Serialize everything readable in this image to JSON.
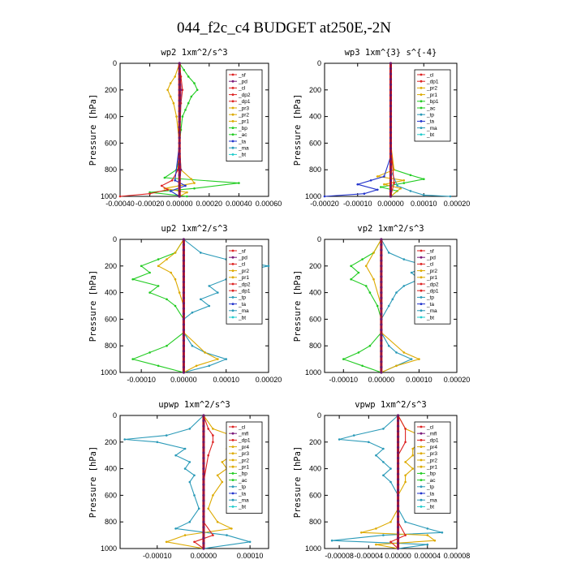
{
  "figure_title": "044_f2c_c4  BUDGET at250E,-2N",
  "chart_data": [
    {
      "id": "wp2",
      "type": "line",
      "title": "wp2   1xm^2/s^3",
      "ylabel": "Pressure [hPa]",
      "ylim": [
        1000,
        0
      ],
      "y_ticks": [
        0,
        200,
        400,
        600,
        800,
        1000
      ],
      "xlim": [
        -0.0004,
        0.0006
      ],
      "x_ticks": [
        -0.0004,
        -0.0002,
        0.0,
        0.0002,
        0.0004,
        0.0006
      ],
      "x_tick_labels": [
        "-0.00040",
        "-0.00020",
        "0.00000",
        "0.00020",
        "0.00040",
        "0.00060"
      ],
      "legend": [
        "_sf",
        "_pd",
        "_cl",
        "_dp2",
        "_dp1",
        "_pr3",
        "_pr2",
        "_pr1",
        "_bp",
        "_ac",
        "_ta",
        "_ma",
        "_bt"
      ],
      "series": [
        {
          "name": "_pr1",
          "color": "#22cc22",
          "y": [
            0,
            50,
            100,
            150,
            200,
            250,
            300,
            350,
            400,
            500,
            600,
            700,
            800,
            860,
            900,
            940,
            970,
            1000
          ],
          "x": [
            0,
            3e-05,
            6e-05,
            0.0001,
            0.00012,
            8e-05,
            6e-05,
            4e-05,
            2e-05,
            1e-05,
            0.0,
            0.0,
            -2e-05,
            -0.0001,
            0.0004,
            0.0001,
            -0.0002,
            5e-05
          ]
        },
        {
          "name": "_bp",
          "color": "#ddaa00",
          "y": [
            0,
            100,
            150,
            200,
            250,
            300,
            400,
            600,
            800,
            870,
            900,
            940,
            970,
            1000
          ],
          "x": [
            0,
            -3e-05,
            -6e-05,
            -8e-05,
            -6e-05,
            -4e-05,
            -2e-05,
            0.0,
            1e-05,
            8e-05,
            0.0001,
            -0.0001,
            5e-05,
            0.0
          ]
        },
        {
          "name": "_dp2",
          "color": "#dd2222",
          "y": [
            0,
            100,
            200,
            300,
            600,
            800,
            880,
            920,
            950,
            980,
            1000
          ],
          "x": [
            0,
            1e-05,
            2e-05,
            1e-05,
            0.0,
            -1e-05,
            -5e-05,
            -0.00012,
            -8e-05,
            -0.0002,
            -0.0004
          ]
        },
        {
          "name": "_ta",
          "color": "#2233cc",
          "y": [
            0,
            200,
            600,
            880,
            920,
            960,
            1000
          ],
          "x": [
            0,
            1e-05,
            0.0,
            -3e-05,
            4e-05,
            -6e-05,
            0.0
          ]
        },
        {
          "name": "_bt",
          "color": "#7a1a7a",
          "y": [
            0,
            200,
            400,
            600,
            800,
            900,
            1000
          ],
          "x": [
            0,
            1e-05,
            0.0,
            0.0,
            1e-05,
            0.0,
            0.0
          ]
        }
      ]
    },
    {
      "id": "wp3",
      "type": "line",
      "title": "wp3   1xm^{3} s^{-4}",
      "ylabel": "Pressure [hPa]",
      "ylim": [
        1000,
        0
      ],
      "y_ticks": [
        0,
        200,
        400,
        600,
        800,
        1000
      ],
      "xlim": [
        -0.0002,
        0.0002
      ],
      "x_ticks": [
        -0.0002,
        -0.0001,
        0.0,
        0.0001,
        0.0002
      ],
      "x_tick_labels": [
        "-0.00020",
        "-0.00010",
        "0.00000",
        "0.00010",
        "0.00020"
      ],
      "legend": [
        "_cl",
        "_dp1",
        "_pr2",
        "_pr1",
        "_bp1",
        "_ac",
        "_tp",
        "_ta",
        "_ma",
        "_bt"
      ],
      "series": [
        {
          "name": "_ac",
          "color": "#22cc22",
          "y": [
            0,
            400,
            700,
            800,
            840,
            870,
            900,
            930,
            960,
            1000
          ],
          "x": [
            0,
            0.0,
            0.0,
            1e-05,
            6e-05,
            0.0001,
            4e-05,
            -3e-05,
            2e-05,
            0.0
          ]
        },
        {
          "name": "_pr1",
          "color": "#ddaa00",
          "y": [
            0,
            600,
            800,
            850,
            880,
            910,
            940,
            1000
          ],
          "x": [
            0,
            0.0,
            1e-05,
            -4e-05,
            4e-05,
            -2e-05,
            3e-05,
            0.0
          ]
        },
        {
          "name": "_ta",
          "color": "#2233cc",
          "y": [
            0,
            700,
            850,
            880,
            910,
            950,
            980,
            1000
          ],
          "x": [
            0,
            0.0,
            -2e-05,
            -6e-05,
            -0.0001,
            -4e-05,
            -8e-05,
            -0.0002
          ]
        },
        {
          "name": "_ma",
          "color": "#2a9ab8",
          "y": [
            0,
            800,
            920,
            960,
            990,
            1000
          ],
          "x": [
            0,
            0.0,
            2e-05,
            6e-05,
            0.0001,
            0.00018
          ]
        },
        {
          "name": "_cl",
          "color": "#dd2222",
          "y": [
            0,
            200,
            600,
            900,
            1000
          ],
          "x": [
            0,
            0.0,
            0.0,
            1e-05,
            0.0
          ]
        }
      ]
    },
    {
      "id": "up2",
      "type": "line",
      "title": "up2   1xm^2/s^3",
      "ylabel": "Pressure [hPa]",
      "ylim": [
        1000,
        0
      ],
      "y_ticks": [
        0,
        200,
        400,
        600,
        800,
        1000
      ],
      "xlim": [
        -0.00015,
        0.0002
      ],
      "x_ticks": [
        -0.0001,
        0.0,
        0.0001,
        0.0002
      ],
      "x_tick_labels": [
        "-0.00010",
        "0.00000",
        "0.00010",
        "0.00020"
      ],
      "legend": [
        "_sf",
        "_pd",
        "_cl",
        "_pr2",
        "_pr1",
        "_dp2",
        "_dp1",
        "_tp",
        "_ta",
        "_ma",
        "_bt"
      ],
      "series": [
        {
          "name": "_tp",
          "color": "#2a9ab8",
          "y": [
            0,
            100,
            150,
            200,
            250,
            300,
            350,
            400,
            450,
            500,
            550,
            600,
            700,
            800,
            850,
            900,
            950,
            1000
          ],
          "x": [
            0,
            4e-05,
            0.0001,
            0.0002,
            0.00012,
            0.0001,
            6e-05,
            8e-05,
            4e-05,
            6e-05,
            2e-05,
            0.0,
            0.0,
            2e-05,
            5e-05,
            0.0001,
            6e-05,
            0.0
          ]
        },
        {
          "name": "_dp2",
          "color": "#22cc22",
          "y": [
            0,
            100,
            150,
            200,
            250,
            300,
            350,
            400,
            450,
            500,
            600,
            700,
            800,
            850,
            900,
            950,
            1000
          ],
          "x": [
            0,
            -2e-05,
            -6e-05,
            -0.0001,
            -8e-05,
            -0.00012,
            -6e-05,
            -8e-05,
            -4e-05,
            -2e-05,
            0.0,
            0.0,
            -4e-05,
            -8e-05,
            -0.00012,
            -6e-05,
            0.0
          ]
        },
        {
          "name": "_pr2",
          "color": "#ddaa00",
          "y": [
            0,
            100,
            150,
            200,
            250,
            300,
            400,
            500,
            700,
            850,
            900,
            950,
            1000
          ],
          "x": [
            0,
            -2e-05,
            -4e-05,
            -6e-05,
            -3e-05,
            -2e-05,
            -1e-05,
            0.0,
            0.0,
            5e-05,
            8e-05,
            3e-05,
            0.0
          ]
        },
        {
          "name": "_cl",
          "color": "#dd2222",
          "y": [
            0,
            200,
            500,
            800,
            1000
          ],
          "x": [
            0,
            0.0,
            0.0,
            0.0,
            0.0
          ]
        },
        {
          "name": "_bt",
          "color": "#7a1a7a",
          "y": [
            0,
            300,
            700,
            1000
          ],
          "x": [
            0,
            0.0,
            0.0,
            0.0
          ]
        }
      ]
    },
    {
      "id": "vp2",
      "type": "line",
      "title": "vp2   1xm^2/s^3",
      "ylabel": "Pressure [hPa]",
      "ylim": [
        1000,
        0
      ],
      "y_ticks": [
        0,
        200,
        400,
        600,
        800,
        1000
      ],
      "xlim": [
        -0.00015,
        0.0002
      ],
      "x_ticks": [
        -0.0001,
        0.0,
        0.0001,
        0.0002
      ],
      "x_tick_labels": [
        "-0.00010",
        "0.00000",
        "0.00010",
        "0.00020"
      ],
      "legend": [
        "_sf",
        "_pd",
        "_cl",
        "_pr2",
        "_pr1",
        "_dp2",
        "_dp1",
        "_tp",
        "_ta",
        "_ma",
        "_bt"
      ],
      "series": [
        {
          "name": "_tp",
          "color": "#2a9ab8",
          "y": [
            0,
            100,
            150,
            200,
            250,
            300,
            350,
            400,
            450,
            500,
            600,
            700,
            800,
            850,
            900,
            950,
            1000
          ],
          "x": [
            0,
            2e-05,
            6e-05,
            0.00012,
            8e-05,
            0.0001,
            6e-05,
            4e-05,
            3e-05,
            2e-05,
            0.0,
            0.0,
            2e-05,
            4e-05,
            8e-05,
            4e-05,
            0.0
          ]
        },
        {
          "name": "_dp2",
          "color": "#22cc22",
          "y": [
            0,
            100,
            150,
            200,
            250,
            300,
            350,
            400,
            500,
            600,
            700,
            800,
            850,
            900,
            950,
            1000
          ],
          "x": [
            0,
            -2e-05,
            -5e-05,
            -8e-05,
            -6e-05,
            -8e-05,
            -4e-05,
            -3e-05,
            -1e-05,
            0.0,
            0.0,
            -3e-05,
            -6e-05,
            -0.0001,
            -5e-05,
            0.0
          ]
        },
        {
          "name": "_pr2",
          "color": "#ddaa00",
          "y": [
            0,
            100,
            200,
            300,
            500,
            700,
            850,
            900,
            950,
            1000
          ],
          "x": [
            0,
            -2e-05,
            -4e-05,
            -2e-05,
            0.0,
            0.0,
            6e-05,
            0.0001,
            4e-05,
            0.0
          ]
        },
        {
          "name": "_cl",
          "color": "#dd2222",
          "y": [
            0,
            300,
            700,
            1000
          ],
          "x": [
            0,
            0.0,
            0.0,
            0.0
          ]
        },
        {
          "name": "_bt",
          "color": "#7a1a7a",
          "y": [
            0,
            500,
            1000
          ],
          "x": [
            0,
            0.0,
            0.0
          ]
        }
      ]
    },
    {
      "id": "upwp",
      "type": "line",
      "title": "upwp   1xm^2/s^3",
      "ylabel": "Pressure [hPa]",
      "ylim": [
        1000,
        0
      ],
      "y_ticks": [
        0,
        200,
        400,
        600,
        800,
        1000
      ],
      "xlim": [
        -0.00018,
        0.00014
      ],
      "x_ticks": [
        -0.0001,
        0.0,
        0.0001
      ],
      "x_tick_labels": [
        "-0.00010",
        "0.00000",
        "0.00010"
      ],
      "legend": [
        "_cl",
        "_mfl",
        "_dp1",
        "_pr4",
        "_pr3",
        "_pr2",
        "_pr1",
        "_bp",
        "_ac",
        "_tp",
        "_ta",
        "_ma",
        "_bt"
      ],
      "series": [
        {
          "name": "_tp",
          "color": "#2a9ab8",
          "y": [
            0,
            100,
            150,
            180,
            200,
            250,
            300,
            350,
            400,
            450,
            500,
            600,
            700,
            800,
            850,
            900,
            950,
            1000
          ],
          "x": [
            0,
            -3e-05,
            -8e-05,
            -0.00017,
            -0.0001,
            -4e-05,
            -6e-05,
            -3e-05,
            -4e-05,
            -2e-05,
            -3e-05,
            -2e-05,
            -1e-05,
            -3e-05,
            -6e-05,
            5e-05,
            0.0001,
            0.0
          ]
        },
        {
          "name": "_pr3",
          "color": "#ddaa00",
          "y": [
            0,
            100,
            150,
            180,
            200,
            250,
            300,
            350,
            400,
            450,
            500,
            600,
            700,
            800,
            850,
            900,
            950,
            1000
          ],
          "x": [
            0,
            2e-05,
            6e-05,
            0.00012,
            8e-05,
            5e-05,
            6e-05,
            4e-05,
            5e-05,
            3e-05,
            4e-05,
            2e-05,
            1e-05,
            3e-05,
            6e-05,
            -4e-05,
            -8e-05,
            0.0
          ]
        },
        {
          "name": "_dp1",
          "color": "#dd2222",
          "y": [
            0,
            100,
            150,
            200,
            300,
            500,
            800,
            900,
            950,
            1000
          ],
          "x": [
            0,
            1e-05,
            2e-05,
            2e-05,
            1e-05,
            0.0,
            0.0,
            2e-05,
            -2e-05,
            0.0
          ]
        },
        {
          "name": "_bt",
          "color": "#7a1a7a",
          "y": [
            0,
            300,
            700,
            1000
          ],
          "x": [
            0,
            0.0,
            0.0,
            0.0
          ]
        }
      ]
    },
    {
      "id": "vpwp",
      "type": "line",
      "title": "vpwp   1xm^2/s^3",
      "ylabel": "Pressure [hPa]",
      "ylim": [
        1000,
        0
      ],
      "y_ticks": [
        0,
        200,
        400,
        600,
        800,
        1000
      ],
      "xlim": [
        -0.0001,
        8e-05
      ],
      "x_ticks": [
        -8e-05,
        -4e-05,
        0.0,
        4e-05,
        8e-05
      ],
      "x_tick_labels": [
        "-0.00008",
        "-0.00004",
        "0.00000",
        "0.00004",
        "0.00008"
      ],
      "legend": [
        "_cl",
        "_mfl",
        "_dp1",
        "_pr4",
        "_pr3",
        "_pr2",
        "_pr1",
        "_bp",
        "_ac",
        "_tp",
        "_ta",
        "_ma",
        "_bt"
      ],
      "series": [
        {
          "name": "_tp",
          "color": "#2a9ab8",
          "y": [
            0,
            100,
            150,
            180,
            200,
            250,
            300,
            350,
            400,
            450,
            500,
            600,
            700,
            800,
            850,
            880,
            900,
            940,
            970,
            1000
          ],
          "x": [
            0,
            -2e-05,
            -6e-05,
            -8e-05,
            -4e-05,
            -2e-05,
            -3e-05,
            -2e-05,
            -1e-05,
            -2e-05,
            -1e-05,
            0.0,
            0.0,
            1e-05,
            4e-05,
            6e-05,
            -2e-05,
            -9e-05,
            4e-05,
            0.0
          ]
        },
        {
          "name": "_pr3",
          "color": "#ddaa00",
          "y": [
            0,
            100,
            150,
            180,
            200,
            250,
            300,
            350,
            400,
            450,
            500,
            600,
            700,
            800,
            850,
            880,
            900,
            940,
            970,
            1000
          ],
          "x": [
            0,
            1e-05,
            3e-05,
            6e-05,
            3e-05,
            2e-05,
            2e-05,
            1e-05,
            2e-05,
            1e-05,
            1e-05,
            0.0,
            0.0,
            -1e-05,
            -3e-05,
            -5e-05,
            4e-05,
            5e-05,
            -3e-05,
            0.0
          ]
        },
        {
          "name": "_dp1",
          "color": "#dd2222",
          "y": [
            0,
            100,
            200,
            300,
            500,
            800,
            900,
            950,
            1000
          ],
          "x": [
            0,
            1e-05,
            1e-05,
            0.0,
            0.0,
            0.0,
            1e-05,
            -1e-05,
            0.0
          ]
        },
        {
          "name": "_bt",
          "color": "#7a1a7a",
          "y": [
            0,
            300,
            700,
            1000
          ],
          "x": [
            0,
            0.0,
            0.0,
            0.0
          ]
        }
      ]
    }
  ]
}
